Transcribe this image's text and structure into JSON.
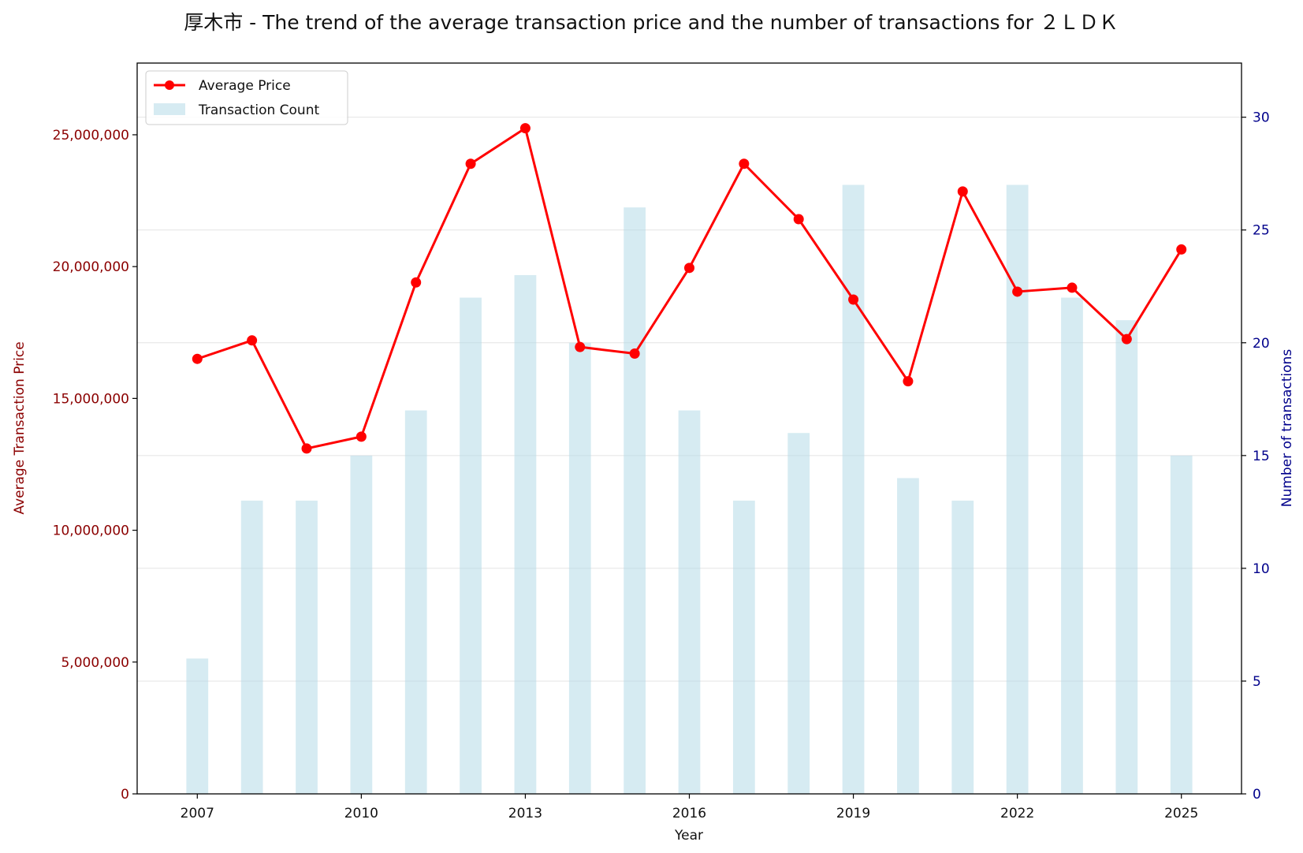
{
  "chart_data": {
    "type": "bar+line",
    "title": "厚木市 - The trend of the average transaction price and the number of transactions for ２ＬＤＫ",
    "xlabel": "Year",
    "ylabel_left": "Average Transaction Price",
    "ylabel_right": "Number of transactions",
    "x": [
      2007,
      2008,
      2009,
      2010,
      2011,
      2012,
      2013,
      2014,
      2015,
      2016,
      2017,
      2018,
      2019,
      2020,
      2021,
      2022,
      2023,
      2024,
      2025
    ],
    "x_ticks": [
      "2007",
      "2010",
      "2013",
      "2016",
      "2019",
      "2022",
      "2025"
    ],
    "xlim": [
      2005.9,
      2026.1
    ],
    "ylim_left": [
      0,
      27720000
    ],
    "ylim_right": [
      0,
      32.4
    ],
    "left_ticks": [
      "0",
      "5,000,000",
      "10,000,000",
      "15,000,000",
      "20,000,000",
      "25,000,000"
    ],
    "right_ticks": [
      "0",
      "5",
      "10",
      "15",
      "20",
      "25",
      "30"
    ],
    "grid": "horizontal (right axis)",
    "legend_position": "top-left",
    "series": [
      {
        "name": "Average Price",
        "type": "line",
        "axis": "left",
        "color": "#ff0000",
        "values": [
          16500000,
          17200000,
          13100000,
          13550000,
          19400000,
          23900000,
          25250000,
          16950000,
          16700000,
          19950000,
          23900000,
          21800000,
          18750000,
          15650000,
          22850000,
          19050000,
          19200000,
          17250000,
          20650000
        ]
      },
      {
        "name": "Transaction Count",
        "type": "bar",
        "axis": "right",
        "color": "#add8e6",
        "values": [
          6,
          13,
          13,
          15,
          17,
          22,
          23,
          20,
          26,
          17,
          13,
          16,
          27,
          14,
          13,
          27,
          22,
          21,
          15
        ]
      }
    ]
  }
}
